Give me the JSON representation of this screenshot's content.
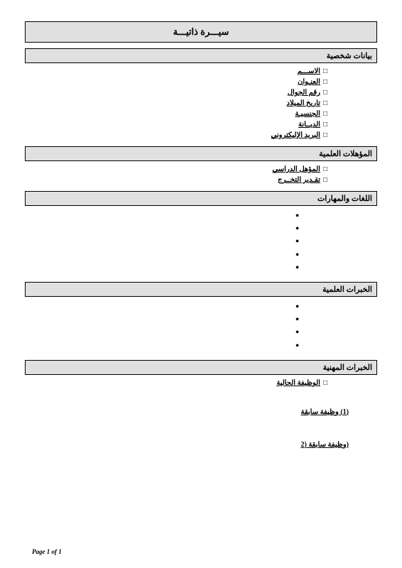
{
  "title": "سيـــرة ذاتيـــة",
  "sections": {
    "personal": {
      "header": "بيانات شخصية",
      "fields": [
        "الاســـم",
        "العنـوان",
        "رقم الجوال",
        "تاريخ الميلاد",
        "الجنسيـة",
        "الديــانة",
        "البريد الإليكتروني"
      ]
    },
    "qualifications": {
      "header": "المؤهلات العلمية",
      "fields": [
        "المؤهل الدراسي",
        "تقـدير التخــرج"
      ]
    },
    "skills": {
      "header": "اللغات والمهارات",
      "bullets": 5
    },
    "scientific": {
      "header": "الخبرات العلمية",
      "bullets": 4
    },
    "professional": {
      "header": "الخبرات المهنية",
      "current": "الوظيفة الحالية",
      "prev1": "(1) وظيفة سابقة",
      "prev2": "(وظيفة سابقة (2"
    }
  },
  "footer": "Page 1 of 1",
  "colors": {
    "header_bg": "#e0e0e0",
    "border": "#000000",
    "text": "#000000",
    "page_bg": "#ffffff"
  }
}
